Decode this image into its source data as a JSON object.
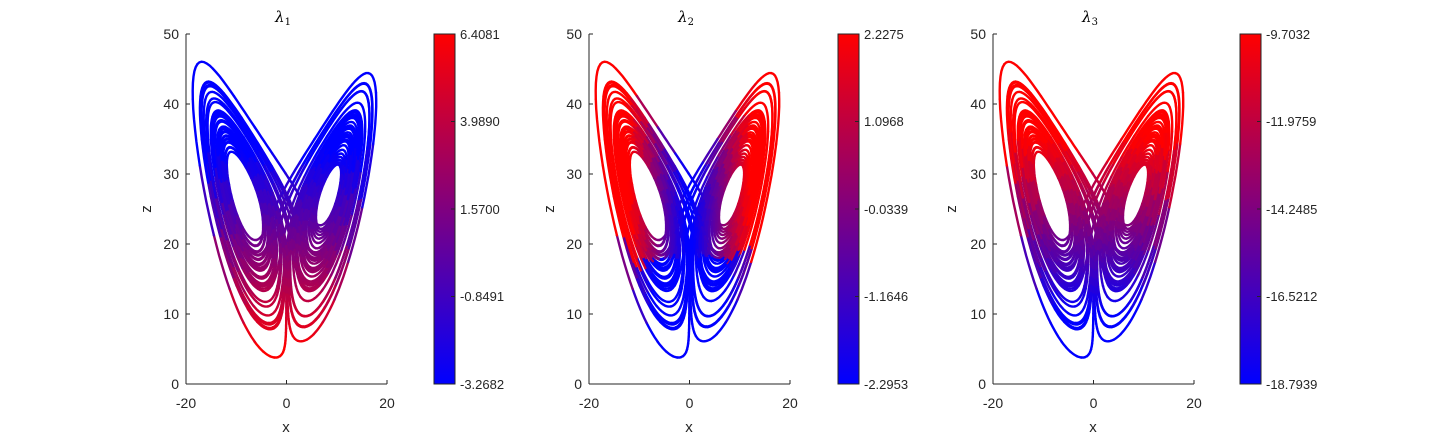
{
  "chart_data": [
    {
      "type": "line",
      "title": "λ",
      "title_subscript": "1",
      "xlabel": "x",
      "ylabel": "z",
      "xlim": [
        -20,
        20
      ],
      "ylim": [
        0,
        50
      ],
      "xticks": [
        "-20",
        "0",
        "20"
      ],
      "yticks": [
        "0",
        "10",
        "20",
        "30",
        "40",
        "50"
      ],
      "grid": false,
      "colorbar": {
        "colors": [
          "#0000ff",
          "#ff0000"
        ],
        "ticks": [
          "-3.2682",
          "-0.8491",
          "1.5700",
          "3.9890",
          "6.4081"
        ]
      },
      "series": [
        {
          "x": [
            -5,
            10,
            0,
            -10,
            5,
            -2,
            17,
            0,
            -17
          ],
          "y": [
            23,
            25,
            20,
            28,
            24,
            30,
            46,
            4,
            46
          ],
          "color_mapping": "red-at-bottom"
        }
      ]
    },
    {
      "type": "line",
      "title": "λ",
      "title_subscript": "2",
      "xlabel": "x",
      "ylabel": "z",
      "xlim": [
        -20,
        20
      ],
      "ylim": [
        0,
        50
      ],
      "xticks": [
        "-20",
        "0",
        "20"
      ],
      "yticks": [
        "0",
        "10",
        "20",
        "30",
        "40",
        "50"
      ],
      "grid": false,
      "colorbar": {
        "colors": [
          "#0000ff",
          "#ff0000"
        ],
        "ticks": [
          "-2.2953",
          "-1.1646",
          "-0.0339",
          "1.0968",
          "2.2275"
        ]
      },
      "series": [
        {
          "x": [
            -5,
            10,
            0,
            -10,
            5,
            -2,
            17,
            0,
            -17
          ],
          "y": [
            23,
            25,
            20,
            28,
            24,
            30,
            46,
            4,
            46
          ],
          "color_mapping": "red-near-wings"
        }
      ]
    },
    {
      "type": "line",
      "title": "λ",
      "title_subscript": "3",
      "xlabel": "x",
      "ylabel": "z",
      "xlim": [
        -20,
        20
      ],
      "ylim": [
        0,
        50
      ],
      "xticks": [
        "-20",
        "0",
        "20"
      ],
      "yticks": [
        "0",
        "10",
        "20",
        "30",
        "40",
        "50"
      ],
      "grid": false,
      "colorbar": {
        "colors": [
          "#0000ff",
          "#ff0000"
        ],
        "ticks": [
          "-18.7939",
          "-16.5212",
          "-14.2485",
          "-11.9759",
          "-9.7032"
        ]
      },
      "series": [
        {
          "x": [
            -5,
            10,
            0,
            -10,
            5,
            -2,
            17,
            0,
            -17
          ],
          "y": [
            23,
            25,
            20,
            28,
            24,
            30,
            46,
            4,
            46
          ],
          "color_mapping": "red-at-top"
        }
      ]
    }
  ]
}
